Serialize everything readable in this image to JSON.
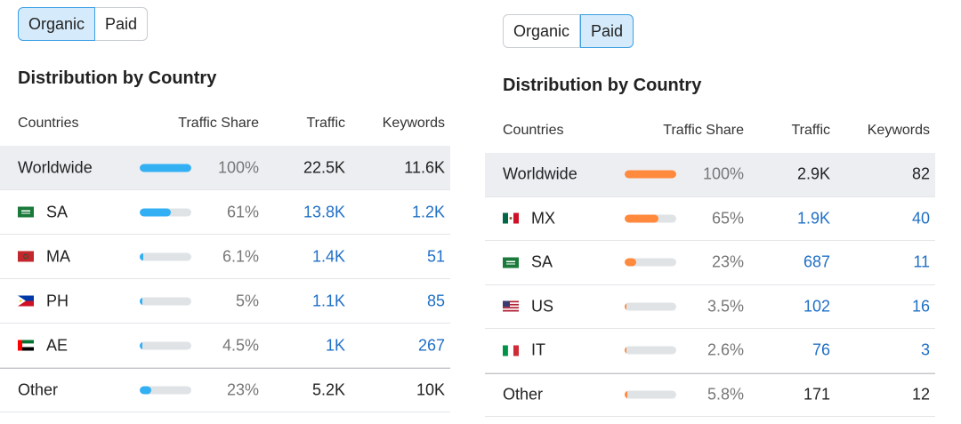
{
  "panels": [
    {
      "tabs": [
        "Organic",
        "Paid"
      ],
      "active_tab": 0,
      "title": "Distribution by Country",
      "table": {
        "columns": [
          "Countries",
          "Traffic Share",
          "Traffic",
          "Keywords"
        ],
        "rows": [
          {
            "country": "Worldwide",
            "share": {
              "value": 100,
              "label": "100%"
            },
            "traffic": "22.5K",
            "keywords": "11.6K"
          },
          {
            "country": "SA",
            "share": {
              "value": 61,
              "label": "61%"
            },
            "traffic": "13.8K",
            "keywords": "1.2K"
          },
          {
            "country": "MA",
            "share": {
              "value": 6.1,
              "label": "6.1%"
            },
            "traffic": "1.4K",
            "keywords": "51"
          },
          {
            "country": "PH",
            "share": {
              "value": 5,
              "label": "5%"
            },
            "traffic": "1.1K",
            "keywords": "85"
          },
          {
            "country": "AE",
            "share": {
              "value": 4.5,
              "label": "4.5%"
            },
            "traffic": "1K",
            "keywords": "267"
          },
          {
            "country": "Other",
            "share": {
              "value": 23,
              "label": "23%"
            },
            "traffic": "5.2K",
            "keywords": "10K"
          }
        ]
      }
    },
    {
      "tabs": [
        "Organic",
        "Paid"
      ],
      "active_tab": 1,
      "title": "Distribution by Country",
      "table": {
        "columns": [
          "Countries",
          "Traffic Share",
          "Traffic",
          "Keywords"
        ],
        "rows": [
          {
            "country": "Worldwide",
            "share": {
              "value": 100,
              "label": "100%"
            },
            "traffic": "2.9K",
            "keywords": "82"
          },
          {
            "country": "MX",
            "share": {
              "value": 65,
              "label": "65%"
            },
            "traffic": "1.9K",
            "keywords": "40"
          },
          {
            "country": "SA",
            "share": {
              "value": 23,
              "label": "23%"
            },
            "traffic": "687",
            "keywords": "11"
          },
          {
            "country": "US",
            "share": {
              "value": 3.5,
              "label": "3.5%"
            },
            "traffic": "102",
            "keywords": "16"
          },
          {
            "country": "IT",
            "share": {
              "value": 2.6,
              "label": "2.6%"
            },
            "traffic": "76",
            "keywords": "3"
          },
          {
            "country": "Other",
            "share": {
              "value": 5.8,
              "label": "5.8%"
            },
            "traffic": "171",
            "keywords": "12"
          }
        ]
      }
    }
  ]
}
